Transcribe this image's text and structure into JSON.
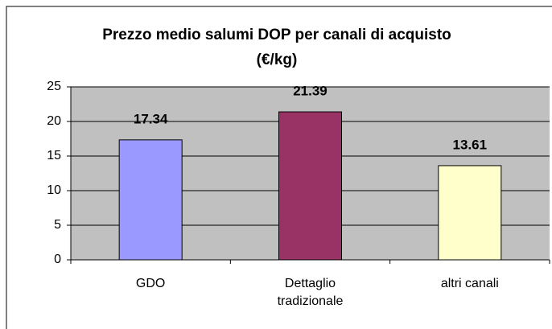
{
  "chart_data": {
    "type": "bar",
    "title": "Prezzo medio salumi DOP per canali di acquisto (€/kg)",
    "categories": [
      "GDO",
      "Dettaglio tradizionale",
      "altri canali"
    ],
    "values": [
      17.34,
      21.39,
      13.61
    ],
    "colors": [
      "#9999ff",
      "#993366",
      "#ffffcc"
    ],
    "ylim": [
      0,
      25
    ],
    "yticks": [
      0,
      5,
      10,
      15,
      20,
      25
    ],
    "grid": true
  }
}
